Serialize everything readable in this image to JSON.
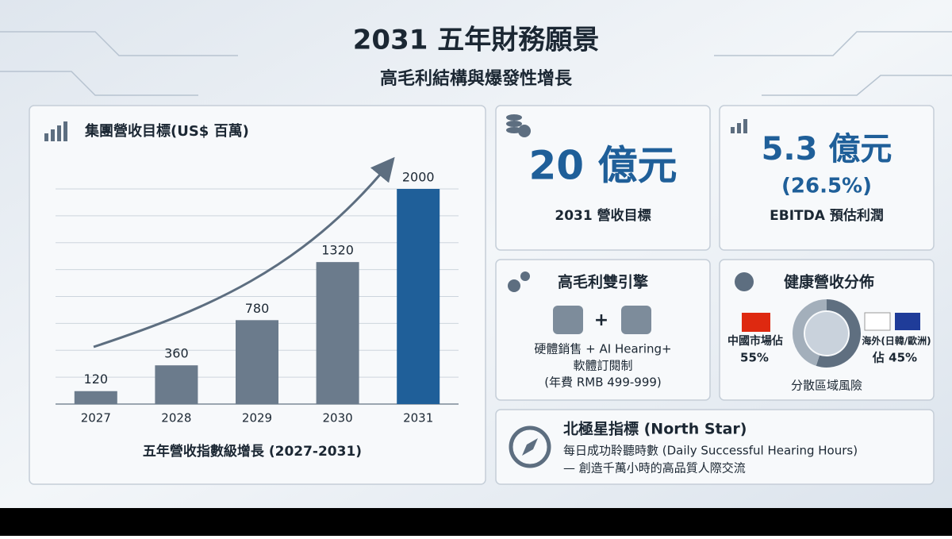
{
  "header": {
    "title": "2031 五年財務願景",
    "subtitle": "高毛利結構與爆發性增長"
  },
  "chart_data": {
    "type": "bar",
    "title": "集團營收目標(US$ 百萬)",
    "caption": "五年營收指數級增長 (2027-2031)",
    "categories": [
      "2027",
      "2028",
      "2029",
      "2030",
      "2031"
    ],
    "values": [
      120,
      360,
      780,
      1320,
      2000
    ],
    "colors": [
      "#6b7b8c",
      "#6b7b8c",
      "#6b7b8c",
      "#6b7b8c",
      "#1f5f99"
    ],
    "ylim": [
      0,
      2000
    ],
    "grid": true
  },
  "cards": {
    "revenue": {
      "headline": "20 億元",
      "label": "2031 營收目標"
    },
    "ebitda": {
      "headline": "5.3 億元",
      "percent": "(26.5%)",
      "label": "EBITDA 預估利潤"
    },
    "engines": {
      "title": "高毛利雙引擎",
      "lines": [
        "硬體銷售 + AI Hearing+",
        "軟體訂閱制",
        "(年費 RMB 499-999)"
      ]
    },
    "distribution": {
      "title": "健康營收分佈",
      "segments": [
        {
          "label": "中國市場佔",
          "value": 55,
          "value_label": "55%",
          "color": "#5f6f80"
        },
        {
          "label": "海外(日韓/歐洲)",
          "value": 45,
          "value_label": "佔 45%",
          "color": "#a3afbb"
        }
      ],
      "note": "分散區域風險"
    },
    "north_star": {
      "title": "北極星指標 (North Star)",
      "lines": [
        "每日成功聆聽時數 (Daily Successful Hearing Hours)",
        "— 創造千萬小時的高品質人際交流"
      ]
    }
  }
}
